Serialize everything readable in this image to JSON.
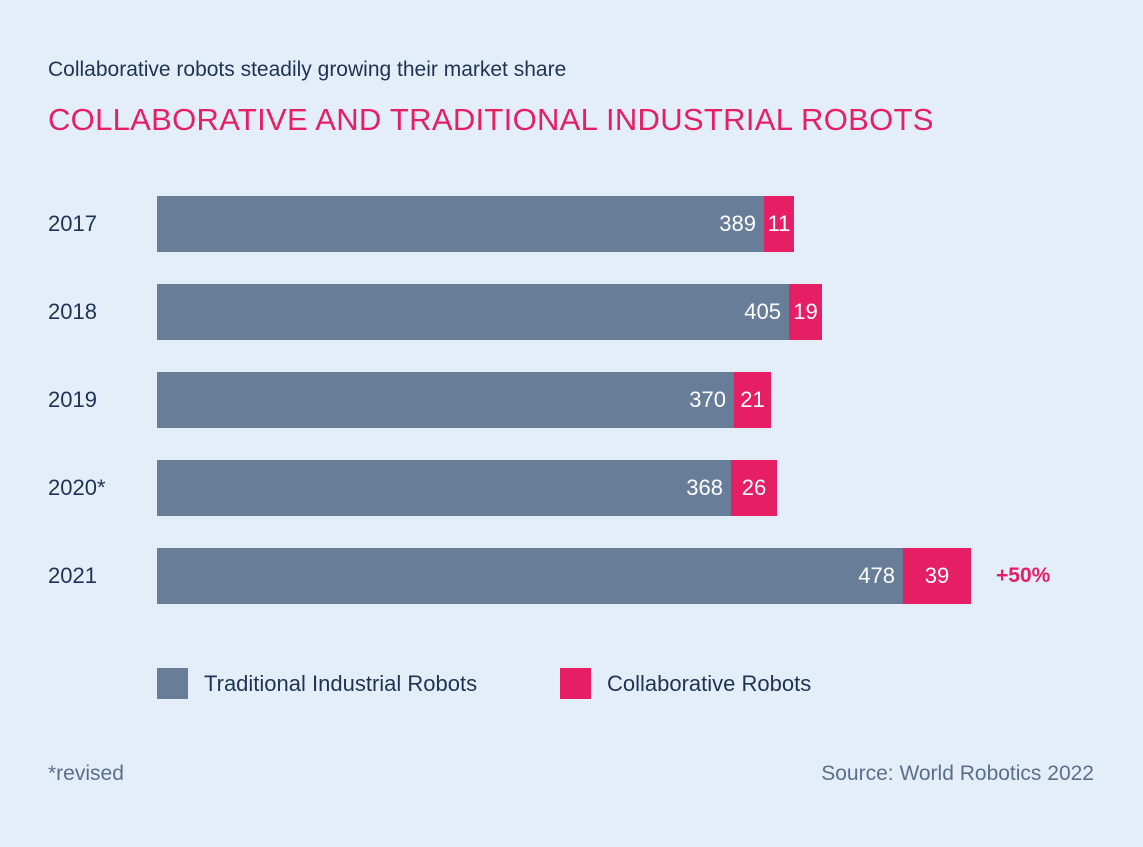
{
  "subtitle": "Collaborative robots steadily growing their market share",
  "title": "COLLABORATIVE AND TRADITIONAL INDUSTRIAL ROBOTS",
  "footnote": "*revised",
  "source": "Source: World Robotics 2022",
  "colors": {
    "traditional": "#687e98",
    "collaborative": "#e61e64",
    "background": "#e4eef8"
  },
  "chart_data": {
    "type": "bar",
    "orientation": "horizontal",
    "stacked": true,
    "title": "COLLABORATIVE AND TRADITIONAL INDUSTRIAL ROBOTS",
    "subtitle": "Collaborative robots steadily growing their market share",
    "categories": [
      "2017",
      "2018",
      "2019",
      "2020*",
      "2021"
    ],
    "series": [
      {
        "name": "Traditional Industrial Robots",
        "values": [
          389,
          405,
          370,
          368,
          478
        ]
      },
      {
        "name": "Collaborative Robots",
        "values": [
          11,
          19,
          21,
          26,
          39
        ]
      }
    ],
    "annotations": [
      {
        "category": "2021",
        "text": "+50%"
      }
    ],
    "legend": "bottom",
    "grid": false
  }
}
